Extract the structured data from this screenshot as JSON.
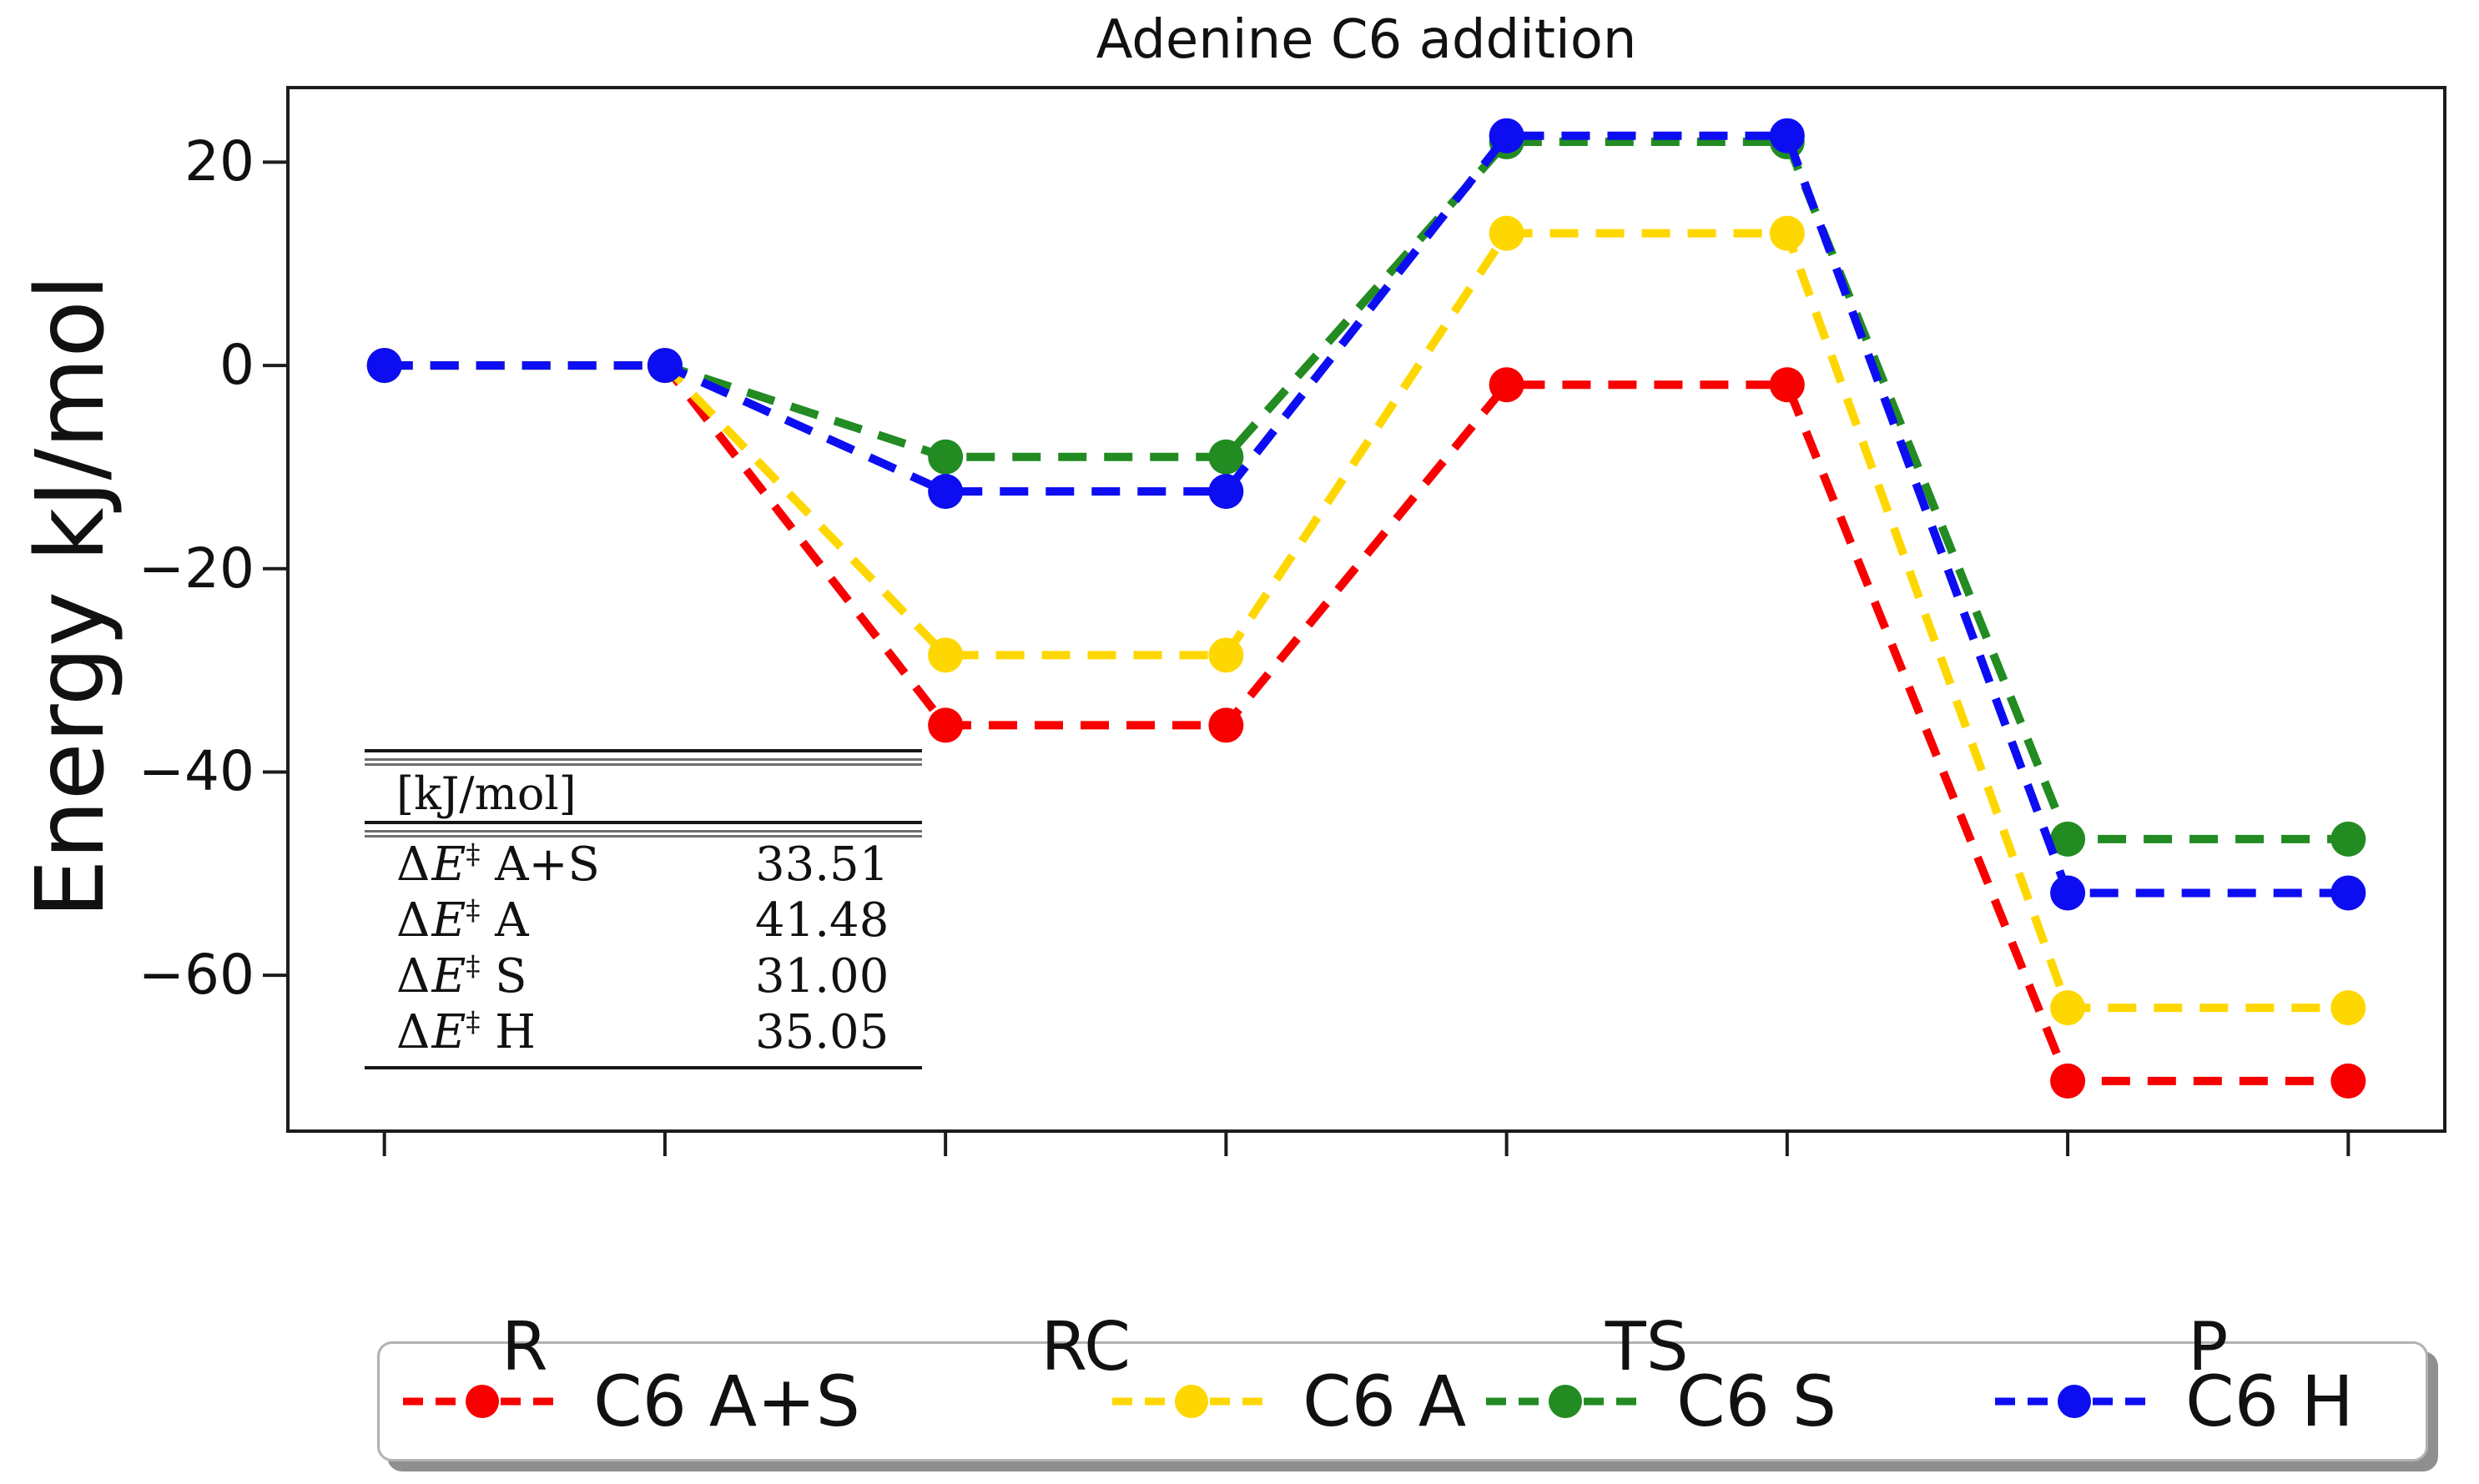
{
  "title": "Adenine C6 addition",
  "ylabel": "Energy kJ/mol",
  "chart_data": {
    "type": "line",
    "title": "Adenine C6 addition",
    "xlabel": "",
    "ylabel": "Energy kJ/mol",
    "line_style": "dashed",
    "marker": "circle",
    "grid": false,
    "legend_position": "bottom",
    "stages": [
      "R",
      "RC",
      "TS",
      "P"
    ],
    "stage_x_pairs": [
      [
        0.25,
        1.25
      ],
      [
        2.25,
        3.25
      ],
      [
        4.25,
        5.25
      ],
      [
        6.25,
        7.25
      ]
    ],
    "xlim": [
      -0.1,
      7.6
    ],
    "ylim": [
      -75.5,
      27.5
    ],
    "yticks": [
      20,
      0,
      -20,
      -40,
      -60
    ],
    "series": [
      {
        "name": "C6 A+S",
        "color": "#f80000",
        "values": [
          0,
          -35.4,
          -1.9,
          -70.4
        ]
      },
      {
        "name": "C6 A",
        "color": "#ffd700",
        "values": [
          0,
          -28.5,
          13.0,
          -63.2
        ]
      },
      {
        "name": "C6 S",
        "color": "#228b22",
        "values": [
          0,
          -9.0,
          22.0,
          -46.6
        ]
      },
      {
        "name": "C6 H",
        "color": "#0d0df2",
        "values": [
          0,
          -12.4,
          22.6,
          -51.9
        ]
      }
    ]
  },
  "inset_table": {
    "header": "[kJ/mol]",
    "rows": [
      {
        "delta": "Δ",
        "var": "E",
        "dagger": "‡",
        "name": "A+S",
        "value": "33.51"
      },
      {
        "delta": "Δ",
        "var": "E",
        "dagger": "‡",
        "name": "A",
        "value": "41.48"
      },
      {
        "delta": "Δ",
        "var": "E",
        "dagger": "‡",
        "name": "S",
        "value": "31.00"
      },
      {
        "delta": "Δ",
        "var": "E",
        "dagger": "‡",
        "name": "H",
        "value": "35.05"
      }
    ]
  },
  "style": {
    "axis_color": "#1c1c1c",
    "dash_pattern": "34 21",
    "line_width": 10,
    "marker_radius": 21
  }
}
